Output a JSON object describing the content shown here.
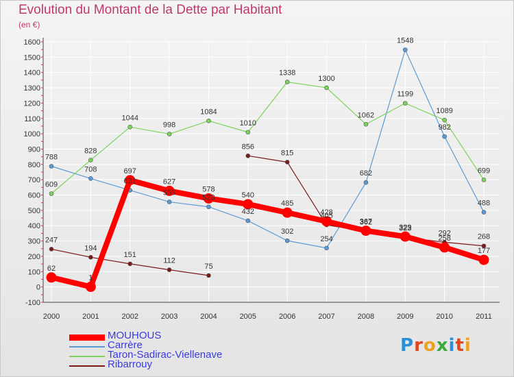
{
  "title": "Evolution du Montant de la Dette par Habitant",
  "unit_label": "(en €)",
  "logo": {
    "text": "Proxiti",
    "letter_colors": [
      "#2a8fd8",
      "#e0471f",
      "#f0a020",
      "#3aaa3a",
      "#2a8fd8",
      "#e0471f",
      "#f0a020"
    ]
  },
  "chart_data": {
    "type": "line",
    "categories": [
      "2000",
      "2001",
      "2002",
      "2003",
      "2004",
      "2005",
      "2006",
      "2007",
      "2008",
      "2009",
      "2010",
      "2011"
    ],
    "ylim": [
      -100,
      1600
    ],
    "y_ticks": [
      "-100",
      "0",
      "100",
      "200",
      "300",
      "400",
      "500",
      "600",
      "700",
      "800",
      "900",
      "1000",
      "1100",
      "1200",
      "1300",
      "1400",
      "1500",
      "1600"
    ],
    "grid": true,
    "legend_position": "bottom-left",
    "series": [
      {
        "name": "MOUHOUS",
        "color": "#ff0000",
        "emphasis": true,
        "values": [
          62,
          1,
          697,
          627,
          578,
          540,
          485,
          428,
          367,
          329,
          258,
          177
        ],
        "labels": [
          "62",
          "1",
          "697",
          "627",
          "578",
          "540",
          "485",
          "428",
          "367",
          "329",
          "258",
          "177"
        ]
      },
      {
        "name": "Carrère",
        "color": "#5b9bd5",
        "values": [
          788,
          708,
          631,
          555,
          523,
          432,
          302,
          254,
          682,
          1548,
          982,
          488
        ],
        "labels": [
          "788",
          "708",
          "631",
          "555",
          "523",
          "432",
          "302",
          "254",
          "682",
          "1548",
          "982",
          "488"
        ]
      },
      {
        "name": "Taron-Sadirac-Viellenave",
        "color": "#7bd35a",
        "values": [
          609,
          828,
          1044,
          998,
          1084,
          1010,
          1338,
          1300,
          1062,
          1199,
          1089,
          699
        ],
        "labels": [
          "609",
          "828",
          "1044",
          "998",
          "1084",
          "1010",
          "1338",
          "1300",
          "1062",
          "1199",
          "1089",
          "699"
        ]
      },
      {
        "name": "Ribarrouy",
        "color": "#7a1a1a",
        "values": [
          247,
          194,
          151,
          112,
          75,
          856,
          815,
          405,
          362,
          323,
          292,
          268
        ],
        "segments": [
          [
            0,
            4
          ],
          [
            5,
            11
          ]
        ],
        "labels": [
          "247",
          "194",
          "151",
          "112",
          "75",
          "856",
          "815",
          "405",
          "362",
          "323",
          "292",
          "268"
        ]
      }
    ]
  }
}
